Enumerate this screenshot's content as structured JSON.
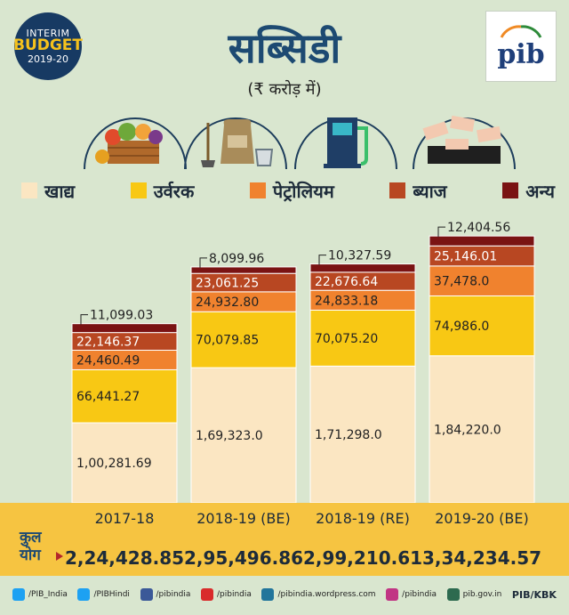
{
  "badge": {
    "line1": "INTERIM",
    "line2": "BUDGET",
    "line3": "2019-20"
  },
  "pib": {
    "logo": "pib"
  },
  "title": "सब्सिडी",
  "subtitle": "(₹ करोड़ में)",
  "legend": [
    {
      "label": "खाद्य",
      "color": "#fbe6c2"
    },
    {
      "label": "उर्वरक",
      "color": "#f8c814"
    },
    {
      "label": "पेट्रोलियम",
      "color": "#f0822e"
    },
    {
      "label": "ब्याज",
      "color": "#b84722"
    },
    {
      "label": "अन्य",
      "color": "#7a1313"
    }
  ],
  "icons": [
    "food-basket-icon",
    "fertilizer-sack-icon",
    "fuel-pump-icon",
    "currency-notes-icon"
  ],
  "chart_data": {
    "type": "bar",
    "stacked": true,
    "categories": [
      "2017-18",
      "2018-19 (BE)",
      "2018-19 (RE)",
      "2019-20 (BE)"
    ],
    "series": [
      {
        "name": "खाद्य",
        "values": [
          100281.69,
          169323.0,
          171298.0,
          184220.0
        ],
        "labels": [
          "1,00,281.69",
          "1,69,323.0",
          "1,71,298.0",
          "1,84,220.0"
        ]
      },
      {
        "name": "उर्वरक",
        "values": [
          66441.27,
          70079.85,
          70075.2,
          74986.0
        ],
        "labels": [
          "66,441.27",
          "70,079.85",
          "70,075.20",
          "74,986.0"
        ]
      },
      {
        "name": "पेट्रोलियम",
        "values": [
          24460.49,
          24932.8,
          24833.18,
          37478.0
        ],
        "labels": [
          "24,460.49",
          "24,932.80",
          "24,833.18",
          "37,478.0"
        ]
      },
      {
        "name": "ब्याज",
        "values": [
          22146.37,
          23061.25,
          22676.64,
          25146.01
        ],
        "labels": [
          "22,146.37",
          "23,061.25",
          "22,676.64",
          "25,146.01"
        ]
      },
      {
        "name": "अन्य",
        "values": [
          11099.03,
          8099.96,
          10327.59,
          12404.56
        ],
        "labels": [
          "11,099.03",
          "8,099.96",
          "10,327.59",
          "12,404.56"
        ]
      }
    ],
    "totals": [
      "2,24,428.85",
      "2,95,496.86",
      "2,99,210.61",
      "3,34,234.57"
    ],
    "total_label": "कुल योग",
    "ylim": [
      0,
      340000
    ]
  },
  "social": [
    {
      "label": "/PIB_India",
      "icon": "twitter-icon",
      "color": "#1da1f2"
    },
    {
      "label": "/PIBHindi",
      "icon": "twitter-icon",
      "color": "#1da1f2"
    },
    {
      "label": "/pibindia",
      "icon": "facebook-icon",
      "color": "#3b5998"
    },
    {
      "label": "/pibindia",
      "icon": "youtube-icon",
      "color": "#d92b2b"
    },
    {
      "label": "/pibindia.wordpress.com",
      "icon": "wordpress-icon",
      "color": "#21759b"
    },
    {
      "label": "/pibindia",
      "icon": "instagram-icon",
      "color": "#c13584"
    },
    {
      "label": "pib.gov.in",
      "icon": "globe-icon",
      "color": "#2d6a4f"
    }
  ],
  "credit": "PIB/KBK"
}
